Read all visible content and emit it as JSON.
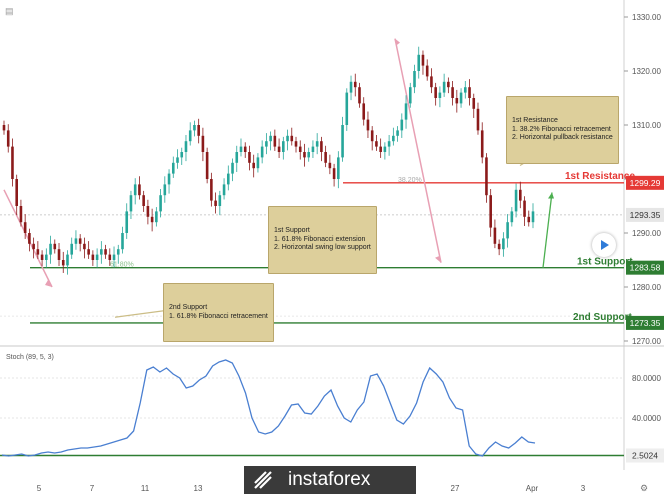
{
  "chart_data": [
    {
      "type": "candlestick",
      "instrument_panel": "price",
      "y_ticks": [
        1270.0,
        1280.0,
        1290.0,
        1300.0,
        1310.0,
        1320.0,
        1330.0
      ],
      "ylim": [
        1270,
        1333
      ],
      "x_ticks": [
        "5",
        "7",
        "11",
        "13",
        "27",
        "Apr",
        "3"
      ],
      "close_series": [
        1309,
        1306,
        1300,
        1295,
        1292,
        1290,
        1288,
        1287,
        1286,
        1285,
        1286,
        1288,
        1287,
        1285,
        1284,
        1286,
        1288,
        1289,
        1288,
        1287,
        1286,
        1285,
        1286,
        1287,
        1286,
        1285,
        1286,
        1287,
        1290,
        1294,
        1297,
        1299,
        1297,
        1295,
        1293,
        1292,
        1294,
        1297,
        1299,
        1301,
        1303,
        1304,
        1305,
        1307,
        1309,
        1310,
        1308,
        1305,
        1300,
        1296,
        1295,
        1297,
        1299,
        1301,
        1303,
        1305,
        1306,
        1305,
        1303,
        1302,
        1304,
        1306,
        1307,
        1308,
        1306,
        1305,
        1307,
        1308,
        1307,
        1306,
        1305,
        1304,
        1305,
        1306,
        1307,
        1305,
        1303,
        1302,
        1300,
        1304,
        1310,
        1316,
        1318,
        1317,
        1314,
        1311,
        1309,
        1307,
        1306,
        1305,
        1306,
        1307,
        1308,
        1309,
        1311,
        1314,
        1317,
        1320,
        1323,
        1321,
        1319,
        1317,
        1315,
        1316,
        1318,
        1317,
        1315,
        1314,
        1316,
        1317,
        1315,
        1313,
        1309,
        1304,
        1297,
        1291,
        1288,
        1287,
        1289,
        1292,
        1294,
        1298,
        1296,
        1293,
        1292,
        1294
      ],
      "levels": [
        {
          "name": "1st Resistance",
          "value": 1299.29,
          "color": "#e53935",
          "label": "1st Resistance",
          "price_tag": "1299.29",
          "fib_text": "38.20%"
        },
        {
          "name": "1st Support",
          "value": 1283.58,
          "color": "#2e7d32",
          "label": "1st Support",
          "price_tag": "1283.58",
          "fib_text": "61.80%"
        },
        {
          "name": "2nd Support",
          "value": 1273.35,
          "color": "#2e7d32",
          "label": "2nd Support",
          "price_tag": "1273.35"
        }
      ],
      "current_price": {
        "value": 1293.35,
        "tag": "1293.35"
      },
      "annotations": [
        {
          "title": "1st Resistance",
          "lines": [
            "1. 38.2% Fibonacci retracement",
            "2. Horizontal pullback resistance"
          ]
        },
        {
          "title": "1st Support",
          "lines": [
            "1. 61.8% Fibonacci extension",
            "2. Horizontal swing low support"
          ]
        },
        {
          "title": "2nd Support",
          "lines": [
            "1. 61.8% Fibonacci retracement"
          ]
        }
      ],
      "colors": {
        "up": "#26a69a",
        "down": "#8b1a1a",
        "support": "#2e7d32",
        "resistance": "#e53935",
        "arrow": "#e8a0b4"
      }
    },
    {
      "type": "line",
      "instrument_panel": "stochastic",
      "title": "Stoch (89, 5, 3)",
      "y_ticks": [
        40.0,
        80.0
      ],
      "y_tick_labels": [
        "40.0000",
        "80.0000"
      ],
      "ylim": [
        0,
        100
      ],
      "level": {
        "value": 2.5024,
        "tag": "2.5024"
      },
      "values": [
        3,
        2,
        3,
        4,
        2,
        3,
        5,
        6,
        5,
        6,
        8,
        9,
        10,
        10,
        11,
        12,
        14,
        16,
        18,
        20,
        27,
        55,
        88,
        91,
        86,
        90,
        84,
        80,
        70,
        72,
        78,
        82,
        92,
        96,
        98,
        95,
        82,
        65,
        40,
        26,
        24,
        26,
        32,
        42,
        53,
        54,
        45,
        44,
        52,
        62,
        68,
        52,
        40,
        36,
        48,
        56,
        82,
        84,
        72,
        55,
        38,
        34,
        42,
        55,
        76,
        90,
        84,
        76,
        60,
        50,
        48,
        12,
        4,
        2,
        10,
        16,
        12,
        10,
        15,
        21,
        16,
        15
      ]
    }
  ],
  "watermark": {
    "brand": "instaforex"
  }
}
